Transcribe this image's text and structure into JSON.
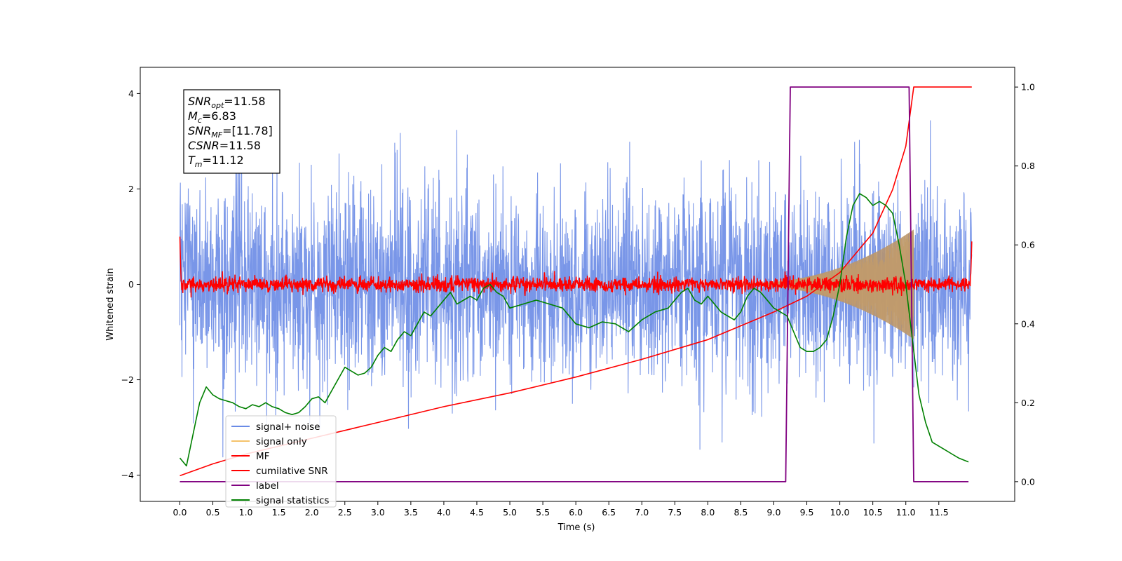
{
  "chart_data": {
    "type": "line",
    "xlabel": "Time (s)",
    "ylabel": "Whitened strain",
    "xlim": [
      -0.6,
      12.65
    ],
    "ylim_left": [
      -4.55,
      4.55
    ],
    "ylim_right": [
      -0.05,
      1.05
    ],
    "x_ticks": [
      "0.0",
      "0.5",
      "1.0",
      "1.5",
      "2.0",
      "2.5",
      "3.0",
      "3.5",
      "4.0",
      "4.5",
      "5.0",
      "5.5",
      "6.0",
      "6.5",
      "7.0",
      "7.5",
      "8.0",
      "8.5",
      "9.0",
      "9.5",
      "10.0",
      "10.5",
      "11.0",
      "11.5"
    ],
    "y_ticks_left": [
      -4,
      -2,
      0,
      2,
      4
    ],
    "y_ticks_right": [
      "0.0",
      "0.2",
      "0.4",
      "0.6",
      "0.8",
      "1.0"
    ],
    "stats": [
      {
        "base": "SNR",
        "sub": "opt",
        "rest": "=11.58"
      },
      {
        "base": "M",
        "sub": "c",
        "rest": "=6.83"
      },
      {
        "base": "SNR",
        "sub": "MF",
        "rest": "=[11.78]"
      },
      {
        "base": "CSNR",
        "sub": "",
        "rest": "=11.58"
      },
      {
        "base": "T",
        "sub": "m",
        "rest": "=11.12"
      }
    ],
    "legend": [
      "signal+ noise",
      "signal only",
      "MF",
      "cumilative SNR",
      "label",
      "signal statistics"
    ],
    "colors": {
      "noise": "#6a8be6",
      "signal": "#f5c36b",
      "mf": "#ff0000",
      "csnr": "#ff0000",
      "label": "#800080",
      "stats": "#008000"
    },
    "series": [
      {
        "name": "signal+ noise",
        "axis": "left",
        "kind": "noise",
        "x_range": [
          0.0,
          12.0
        ],
        "sigma": 1.0,
        "max_abs": 4.05
      },
      {
        "name": "signal only",
        "axis": "left",
        "kind": "chirp",
        "x_range": [
          8.5,
          11.12
        ],
        "amp_start": 0.02,
        "amp_end": 1.15
      },
      {
        "name": "MF",
        "axis": "left",
        "kind": "noise",
        "x_range": [
          0.0,
          12.0
        ],
        "sigma": 0.08,
        "edge_value": 1.0
      },
      {
        "name": "cumilative SNR",
        "axis": "right",
        "x": [
          0.0,
          0.5,
          1.0,
          2.0,
          3.0,
          4.0,
          5.0,
          6.0,
          7.0,
          8.0,
          8.5,
          9.0,
          9.5,
          10.0,
          10.5,
          10.8,
          11.0,
          11.12,
          12.0
        ],
        "y": [
          0.015,
          0.045,
          0.07,
          0.11,
          0.15,
          0.19,
          0.225,
          0.265,
          0.31,
          0.36,
          0.395,
          0.43,
          0.47,
          0.53,
          0.63,
          0.74,
          0.85,
          1.0,
          1.0
        ]
      },
      {
        "name": "label",
        "axis": "right",
        "x": [
          0.0,
          9.18,
          9.25,
          11.05,
          11.12,
          11.95
        ],
        "y": [
          0.0,
          0.0,
          1.0,
          1.0,
          0.0,
          0.0
        ]
      },
      {
        "name": "signal statistics",
        "axis": "right",
        "x": [
          0.0,
          0.1,
          0.2,
          0.3,
          0.4,
          0.5,
          0.6,
          0.7,
          0.8,
          0.9,
          1.0,
          1.1,
          1.2,
          1.3,
          1.4,
          1.5,
          1.6,
          1.7,
          1.8,
          1.9,
          2.0,
          2.1,
          2.2,
          2.3,
          2.4,
          2.5,
          2.6,
          2.7,
          2.8,
          2.9,
          3.0,
          3.1,
          3.2,
          3.3,
          3.4,
          3.5,
          3.6,
          3.7,
          3.8,
          3.9,
          4.0,
          4.1,
          4.2,
          4.3,
          4.4,
          4.5,
          4.6,
          4.7,
          4.8,
          4.9,
          5.0,
          5.2,
          5.4,
          5.6,
          5.8,
          6.0,
          6.2,
          6.4,
          6.6,
          6.8,
          7.0,
          7.2,
          7.4,
          7.5,
          7.6,
          7.7,
          7.8,
          7.9,
          8.0,
          8.2,
          8.4,
          8.5,
          8.6,
          8.7,
          8.8,
          9.0,
          9.2,
          9.3,
          9.4,
          9.5,
          9.6,
          9.7,
          9.8,
          9.9,
          10.0,
          10.1,
          10.2,
          10.3,
          10.4,
          10.5,
          10.6,
          10.7,
          10.8,
          10.9,
          11.0,
          11.1,
          11.2,
          11.3,
          11.4,
          11.5,
          11.6,
          11.7,
          11.8,
          11.95
        ],
        "y": [
          0.06,
          0.04,
          0.12,
          0.2,
          0.24,
          0.22,
          0.21,
          0.205,
          0.2,
          0.19,
          0.185,
          0.195,
          0.19,
          0.2,
          0.19,
          0.185,
          0.175,
          0.17,
          0.175,
          0.19,
          0.21,
          0.215,
          0.2,
          0.23,
          0.26,
          0.29,
          0.28,
          0.27,
          0.275,
          0.29,
          0.32,
          0.34,
          0.33,
          0.36,
          0.38,
          0.37,
          0.4,
          0.43,
          0.42,
          0.44,
          0.46,
          0.48,
          0.45,
          0.46,
          0.47,
          0.46,
          0.49,
          0.5,
          0.48,
          0.47,
          0.44,
          0.45,
          0.46,
          0.45,
          0.44,
          0.4,
          0.39,
          0.405,
          0.4,
          0.38,
          0.41,
          0.43,
          0.44,
          0.46,
          0.48,
          0.49,
          0.46,
          0.45,
          0.47,
          0.43,
          0.41,
          0.43,
          0.47,
          0.49,
          0.48,
          0.44,
          0.42,
          0.38,
          0.34,
          0.33,
          0.33,
          0.34,
          0.36,
          0.42,
          0.5,
          0.62,
          0.7,
          0.73,
          0.72,
          0.7,
          0.71,
          0.7,
          0.68,
          0.6,
          0.5,
          0.36,
          0.22,
          0.15,
          0.1,
          0.09,
          0.08,
          0.07,
          0.06,
          0.05
        ]
      }
    ]
  }
}
